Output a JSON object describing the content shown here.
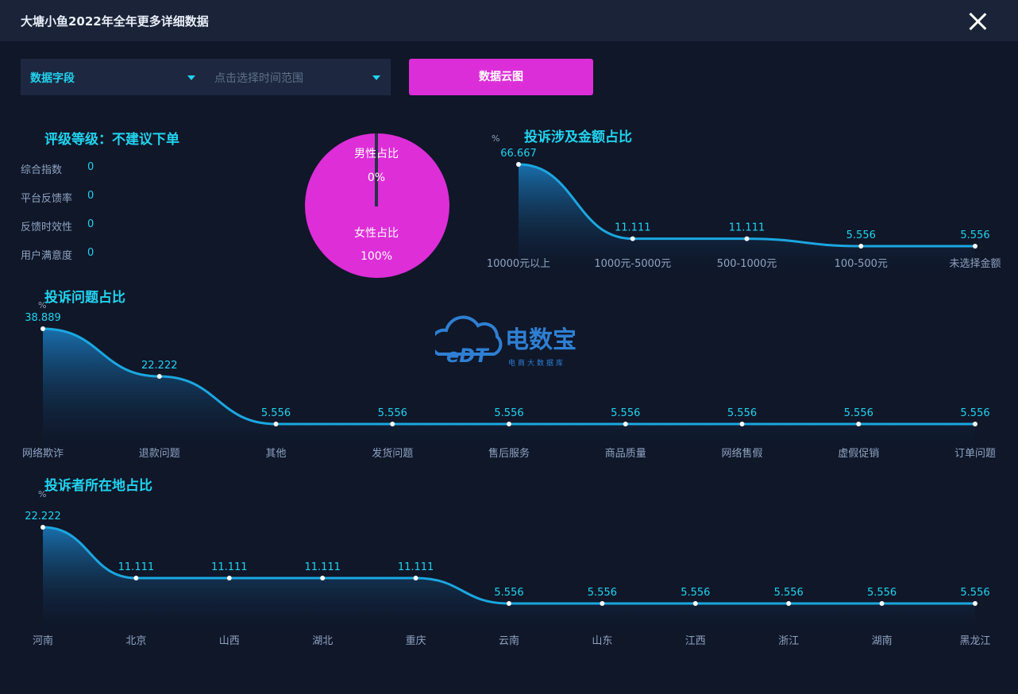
{
  "window": {
    "title": "大塘小鱼2022年全年更多详细数据"
  },
  "filters": {
    "field": "数据字段",
    "time_range_placeholder": "点击选择时间范围",
    "button": "数据云图"
  },
  "rating": {
    "title": "评级等级：不建议下单",
    "metrics": [
      {
        "label": "综合指数",
        "value": "0"
      },
      {
        "label": "平台反馈率",
        "value": "0"
      },
      {
        "label": "反馈时效性",
        "value": "0"
      },
      {
        "label": "用户满意度",
        "value": "0"
      }
    ]
  },
  "gender_pie": {
    "male_label": "男性占比",
    "male_value": "0%",
    "female_label": "女性占比",
    "female_value": "100%",
    "colors": {
      "female": "#dd2ed8",
      "male": "#2a2f4a"
    }
  },
  "watermark": {
    "text": "电数宝",
    "sub": "电商大数据库",
    "mark": "eDT"
  },
  "chart_data": [
    {
      "type": "area",
      "title": "投诉涉及金额占比",
      "unit": "%",
      "categories": [
        "10000元以上",
        "1000元-5000元",
        "500-1000元",
        "100-500元",
        "未选择金额"
      ],
      "values": [
        66.667,
        11.111,
        11.111,
        5.556,
        5.556
      ],
      "labels": [
        "66.667",
        "11.111",
        "11.111",
        "5.556",
        "5.556"
      ]
    },
    {
      "type": "area",
      "title": "投诉问题占比",
      "unit": "%",
      "categories": [
        "网络欺诈",
        "退款问题",
        "其他",
        "发货问题",
        "售后服务",
        "商品质量",
        "网络售假",
        "虚假促销",
        "订单问题"
      ],
      "values": [
        38.889,
        22.222,
        5.556,
        5.556,
        5.556,
        5.556,
        5.556,
        5.556,
        5.556
      ],
      "labels": [
        "38.889",
        "22.222",
        "5.556",
        "5.556",
        "5.556",
        "5.556",
        "5.556",
        "5.556",
        "5.556"
      ]
    },
    {
      "type": "area",
      "title": "投诉者所在地占比",
      "unit": "%",
      "categories": [
        "河南",
        "北京",
        "山西",
        "湖北",
        "重庆",
        "云南",
        "山东",
        "江西",
        "浙江",
        "湖南",
        "黑龙江"
      ],
      "values": [
        22.222,
        11.111,
        11.111,
        11.111,
        11.111,
        5.556,
        5.556,
        5.556,
        5.556,
        5.556,
        5.556
      ],
      "labels": [
        "22.222",
        "11.111",
        "11.111",
        "11.111",
        "11.111",
        "5.556",
        "5.556",
        "5.556",
        "5.556",
        "5.556",
        "5.556"
      ]
    }
  ]
}
